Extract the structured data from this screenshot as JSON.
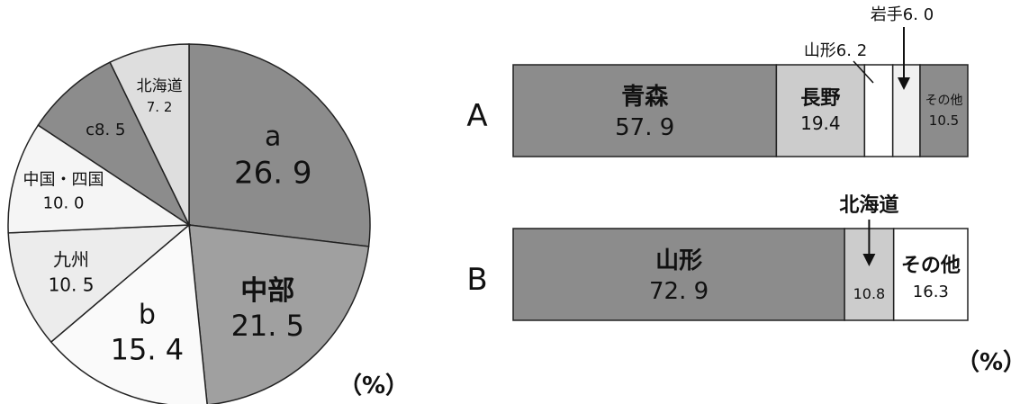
{
  "pie": {
    "type": "pie",
    "unit_label": "（%）",
    "slices": [
      {
        "label": "a",
        "value": 26.9,
        "value_text": "26. 9",
        "color": "#8c8c8c"
      },
      {
        "label": "中部",
        "value": 21.5,
        "value_text": "21. 5",
        "color": "#a0a0a0"
      },
      {
        "label": "b",
        "value": 15.4,
        "value_text": "15. 4",
        "color": "#fafafa"
      },
      {
        "label": "九州",
        "value": 10.5,
        "value_text": "10. 5",
        "color": "#ececec"
      },
      {
        "label": "中国・四国",
        "value": 10.0,
        "value_text": "10. 0",
        "color": "#f5f5f5"
      },
      {
        "label": "c",
        "value": 8.5,
        "value_text": "8. 5",
        "color": "#8c8c8c"
      },
      {
        "label": "北海道",
        "value": 7.2,
        "value_text": "7. 2",
        "color": "#dedede"
      }
    ]
  },
  "chart_data": [
    {
      "type": "pie",
      "categories": [
        "a",
        "中部",
        "b",
        "九州",
        "中国・四国",
        "c",
        "北海道"
      ],
      "values": [
        26.9,
        21.5,
        15.4,
        10.5,
        10.0,
        8.5,
        7.2
      ],
      "unit": "%"
    },
    {
      "type": "bar",
      "orientation": "horizontal-stacked",
      "categories": [
        "A",
        "B"
      ],
      "series": [
        {
          "name": "A",
          "values": [
            {
              "label": "青森",
              "value": 57.9
            },
            {
              "label": "長野",
              "value": 19.4
            },
            {
              "label": "山形",
              "value": 6.2
            },
            {
              "label": "岩手",
              "value": 6.0
            },
            {
              "label": "その他",
              "value": 10.5
            }
          ]
        },
        {
          "name": "B",
          "values": [
            {
              "label": "山形",
              "value": 72.9
            },
            {
              "label": "北海道",
              "value": 10.8
            },
            {
              "label": "その他",
              "value": 16.3
            }
          ]
        }
      ],
      "unit": "%"
    }
  ],
  "bars": {
    "unit_label": "（%）",
    "rows": [
      {
        "name": "A",
        "segments": [
          {
            "label": "青森",
            "value": 57.9,
            "value_text": "57. 9",
            "color": "#8c8c8c",
            "inside": true
          },
          {
            "label": "長野",
            "value": 19.4,
            "value_text": "19.4",
            "color": "#cccccc",
            "inside": true
          },
          {
            "label": "山形",
            "value": 6.2,
            "value_text": "6. 2",
            "color": "#ffffff",
            "inside": false
          },
          {
            "label": "岩手",
            "value": 6.0,
            "value_text": "6. 0",
            "color": "#f0f0f0",
            "inside": false
          },
          {
            "label": "その他",
            "value": 10.5,
            "value_text": "10.5",
            "color": "#8c8c8c",
            "inside": true
          }
        ]
      },
      {
        "name": "B",
        "segments": [
          {
            "label": "山形",
            "value": 72.9,
            "value_text": "72. 9",
            "color": "#8c8c8c",
            "inside": true
          },
          {
            "label": "北海道",
            "value": 10.8,
            "value_text": "10.8",
            "color": "#cccccc",
            "inside": false
          },
          {
            "label": "その他",
            "value": 16.3,
            "value_text": "16.3",
            "color": "#ffffff",
            "inside": true
          }
        ]
      }
    ]
  }
}
